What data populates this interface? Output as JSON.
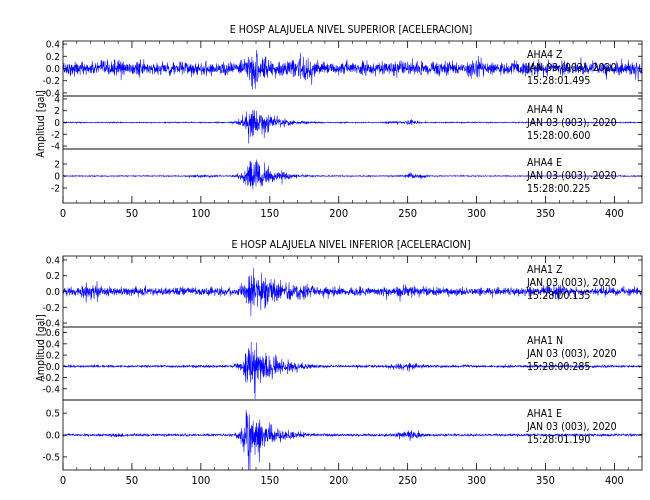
{
  "chart_data": [
    {
      "type": "line",
      "title": "E HOSP ALAJUELA NIVEL SUPERIOR [ACELERACION]",
      "ylabel": "Amplitud [gal]",
      "xlim": [
        0,
        420
      ],
      "xticks": [
        0,
        50,
        100,
        150,
        200,
        250,
        300,
        350,
        400
      ],
      "line_color": "#0000ff",
      "traces": [
        {
          "station": "AHA4",
          "component": "Z",
          "date": "JAN 03 (003), 2020",
          "time": "15:28:01.495",
          "ylim": [
            -0.45,
            0.45
          ],
          "yticks": [
            "0.4",
            "0.2",
            "0.0",
            "-0.2",
            "-0.4"
          ],
          "ytick_values": [
            0.4,
            0.2,
            0.0,
            -0.2,
            -0.4
          ],
          "noise": 0.13,
          "peak": 0.42,
          "peak_time": 137,
          "decay": 16,
          "rise": 5,
          "bumps": [
            [
              40,
              0.2,
              8
            ],
            [
              175,
              0.26,
              12
            ],
            [
              253,
              0.15,
              15
            ],
            [
              300,
              0.2,
              10
            ],
            [
              330,
              0.15,
              12
            ]
          ]
        },
        {
          "station": "AHA4",
          "component": "N",
          "date": "JAN 03 (003), 2020",
          "time": "15:28:00.600",
          "ylim": [
            -4.5,
            4.5
          ],
          "yticks": [
            "4",
            "2",
            "0",
            "-2",
            "-4"
          ],
          "ytick_values": [
            4,
            2,
            0,
            -2,
            -4
          ],
          "noise": 0.1,
          "peak": 4.2,
          "peak_time": 135,
          "decay": 15,
          "rise": 4,
          "bumps": [
            [
              240,
              0.3,
              10
            ],
            [
              252,
              0.6,
              6
            ]
          ]
        },
        {
          "station": "AHA4",
          "component": "E",
          "date": "JAN 03 (003), 2020",
          "time": "15:28:00.225",
          "ylim": [
            -4.5,
            4.5
          ],
          "yticks": [
            "2",
            "0",
            "-2"
          ],
          "ytick_values": [
            2,
            0,
            -2
          ],
          "noise": 0.1,
          "peak": 4.0,
          "peak_time": 135,
          "decay": 15,
          "rise": 4,
          "bumps": [
            [
              100,
              0.25,
              15
            ],
            [
              255,
              0.6,
              8
            ]
          ]
        }
      ]
    },
    {
      "type": "line",
      "title": "E HOSP ALAJUELA NIVEL INFERIOR [ACELERACION]",
      "ylabel": "Amplitud [gal]",
      "xlim": [
        0,
        420
      ],
      "xticks": [
        0,
        50,
        100,
        150,
        200,
        250,
        300,
        350,
        400
      ],
      "line_color": "#0000ff",
      "traces": [
        {
          "station": "AHA1",
          "component": "Z",
          "date": "JAN 03 (003), 2020",
          "time": "15:28:00.135",
          "ylim": [
            -0.45,
            0.45
          ],
          "yticks": [
            "0.4",
            "0.2",
            "0.0",
            "-0.2",
            "-0.4"
          ],
          "ytick_values": [
            0.4,
            0.2,
            0.0,
            -0.2,
            -0.4
          ],
          "noise": 0.06,
          "peak": 0.4,
          "peak_time": 137,
          "decay": 18,
          "rise": 5,
          "bumps": [
            [
              20,
              0.15,
              10
            ],
            [
              170,
              0.15,
              15
            ],
            [
              250,
              0.12,
              12
            ],
            [
              355,
              0.1,
              20
            ]
          ]
        },
        {
          "station": "AHA1",
          "component": "N",
          "date": "JAN 03 (003), 2020",
          "time": "15:28:00.285",
          "ylim": [
            -0.6,
            0.7
          ],
          "yticks": [
            "0.6",
            "0.4",
            "0.2",
            "0.0",
            "-0.2",
            "-0.4"
          ],
          "ytick_values": [
            0.6,
            0.4,
            0.2,
            0.0,
            -0.2,
            -0.4
          ],
          "noise": 0.025,
          "peak": 0.6,
          "peak_time": 135,
          "decay": 18,
          "rise": 4,
          "bumps": [
            [
              250,
              0.08,
              15
            ]
          ]
        },
        {
          "station": "AHA1",
          "component": "E",
          "date": "JAN 03 (003), 2020",
          "time": "15:28:01.190",
          "ylim": [
            -0.8,
            0.8
          ],
          "yticks": [
            "0.5",
            "0.0",
            "-0.5"
          ],
          "ytick_values": [
            0.5,
            0.0,
            -0.5
          ],
          "noise": 0.03,
          "peak": 0.72,
          "peak_time": 134,
          "decay": 17,
          "rise": 4,
          "bumps": [
            [
              250,
              0.12,
              12
            ],
            [
              40,
              0.06,
              10
            ]
          ]
        }
      ]
    }
  ]
}
